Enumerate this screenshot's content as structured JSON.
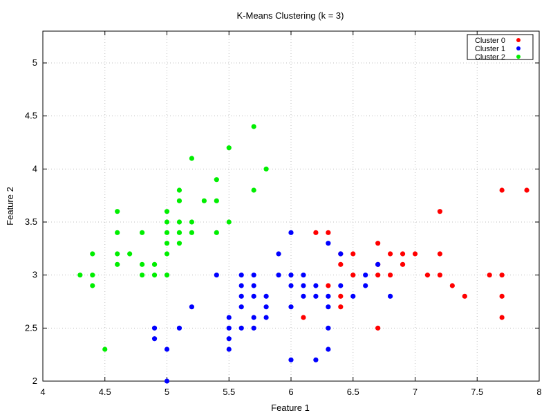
{
  "chart_data": {
    "type": "scatter",
    "title": "K-Means Clustering (k = 3)",
    "xlabel": "Feature 1",
    "ylabel": "Feature 2",
    "xlim": [
      4,
      8
    ],
    "ylim": [
      2,
      5.3
    ],
    "xticks": [
      4,
      4.5,
      5,
      5.5,
      6,
      6.5,
      7,
      7.5,
      8
    ],
    "yticks": [
      2,
      2.5,
      3,
      3.5,
      4,
      4.5,
      5
    ],
    "grid": true,
    "legend_position": "top-right",
    "series": [
      {
        "name": "Cluster 0",
        "color": "#ff0000",
        "points": [
          [
            6.2,
            3.4
          ],
          [
            6.3,
            3.4
          ],
          [
            6.4,
            3.1
          ],
          [
            6.4,
            3.2
          ],
          [
            6.5,
            3.2
          ],
          [
            6.5,
            3.0
          ],
          [
            6.7,
            3.3
          ],
          [
            6.7,
            3.1
          ],
          [
            6.7,
            3.0
          ],
          [
            6.8,
            3.2
          ],
          [
            6.8,
            3.0
          ],
          [
            6.9,
            3.2
          ],
          [
            6.9,
            3.1
          ],
          [
            7.0,
            3.2
          ],
          [
            7.1,
            3.0
          ],
          [
            7.2,
            3.6
          ],
          [
            7.2,
            3.2
          ],
          [
            7.2,
            3.0
          ],
          [
            7.3,
            2.9
          ],
          [
            7.4,
            2.8
          ],
          [
            7.6,
            3.0
          ],
          [
            7.7,
            3.8
          ],
          [
            7.7,
            3.0
          ],
          [
            7.7,
            2.8
          ],
          [
            7.7,
            2.6
          ],
          [
            7.9,
            3.8
          ],
          [
            6.1,
            2.6
          ],
          [
            6.3,
            2.9
          ],
          [
            6.4,
            2.8
          ],
          [
            6.4,
            2.7
          ],
          [
            6.7,
            2.5
          ]
        ]
      },
      {
        "name": "Cluster 1",
        "color": "#0000ff",
        "points": [
          [
            4.9,
            2.5
          ],
          [
            4.9,
            2.4
          ],
          [
            5.0,
            2.3
          ],
          [
            5.0,
            2.0
          ],
          [
            5.1,
            2.5
          ],
          [
            5.2,
            2.7
          ],
          [
            5.4,
            3.0
          ],
          [
            5.5,
            2.6
          ],
          [
            5.5,
            2.5
          ],
          [
            5.5,
            2.4
          ],
          [
            5.5,
            2.3
          ],
          [
            5.6,
            3.0
          ],
          [
            5.6,
            2.9
          ],
          [
            5.6,
            2.8
          ],
          [
            5.6,
            2.7
          ],
          [
            5.6,
            2.5
          ],
          [
            5.7,
            3.0
          ],
          [
            5.7,
            2.9
          ],
          [
            5.7,
            2.8
          ],
          [
            5.7,
            2.6
          ],
          [
            5.7,
            2.5
          ],
          [
            5.8,
            2.8
          ],
          [
            5.8,
            2.7
          ],
          [
            5.8,
            2.6
          ],
          [
            5.9,
            3.2
          ],
          [
            5.9,
            3.0
          ],
          [
            6.0,
            3.4
          ],
          [
            6.0,
            3.0
          ],
          [
            6.0,
            2.9
          ],
          [
            6.0,
            2.7
          ],
          [
            6.0,
            2.2
          ],
          [
            6.1,
            3.0
          ],
          [
            6.1,
            2.9
          ],
          [
            6.1,
            2.8
          ],
          [
            6.2,
            2.9
          ],
          [
            6.2,
            2.8
          ],
          [
            6.2,
            2.2
          ],
          [
            6.3,
            3.3
          ],
          [
            6.3,
            2.8
          ],
          [
            6.3,
            2.7
          ],
          [
            6.3,
            2.5
          ],
          [
            6.3,
            2.3
          ],
          [
            6.4,
            3.2
          ],
          [
            6.4,
            2.9
          ],
          [
            6.5,
            2.8
          ],
          [
            6.6,
            3.0
          ],
          [
            6.6,
            2.9
          ],
          [
            6.7,
            3.1
          ],
          [
            6.8,
            2.8
          ]
        ]
      },
      {
        "name": "Cluster 2",
        "color": "#00ee00",
        "points": [
          [
            4.3,
            3.0
          ],
          [
            4.4,
            3.2
          ],
          [
            4.4,
            3.0
          ],
          [
            4.4,
            2.9
          ],
          [
            4.5,
            2.3
          ],
          [
            4.6,
            3.6
          ],
          [
            4.6,
            3.4
          ],
          [
            4.6,
            3.2
          ],
          [
            4.6,
            3.1
          ],
          [
            4.7,
            3.2
          ],
          [
            4.8,
            3.4
          ],
          [
            4.8,
            3.1
          ],
          [
            4.8,
            3.0
          ],
          [
            4.9,
            3.1
          ],
          [
            4.9,
            3.0
          ],
          [
            5.0,
            3.6
          ],
          [
            5.0,
            3.5
          ],
          [
            5.0,
            3.4
          ],
          [
            5.0,
            3.3
          ],
          [
            5.0,
            3.2
          ],
          [
            5.0,
            3.0
          ],
          [
            5.1,
            3.8
          ],
          [
            5.1,
            3.7
          ],
          [
            5.1,
            3.5
          ],
          [
            5.1,
            3.4
          ],
          [
            5.1,
            3.3
          ],
          [
            5.2,
            4.1
          ],
          [
            5.2,
            3.5
          ],
          [
            5.2,
            3.4
          ],
          [
            5.3,
            3.7
          ],
          [
            5.4,
            3.9
          ],
          [
            5.4,
            3.7
          ],
          [
            5.4,
            3.4
          ],
          [
            5.5,
            4.2
          ],
          [
            5.5,
            3.5
          ],
          [
            5.7,
            4.4
          ],
          [
            5.7,
            3.8
          ],
          [
            5.8,
            4.0
          ]
        ]
      }
    ]
  }
}
